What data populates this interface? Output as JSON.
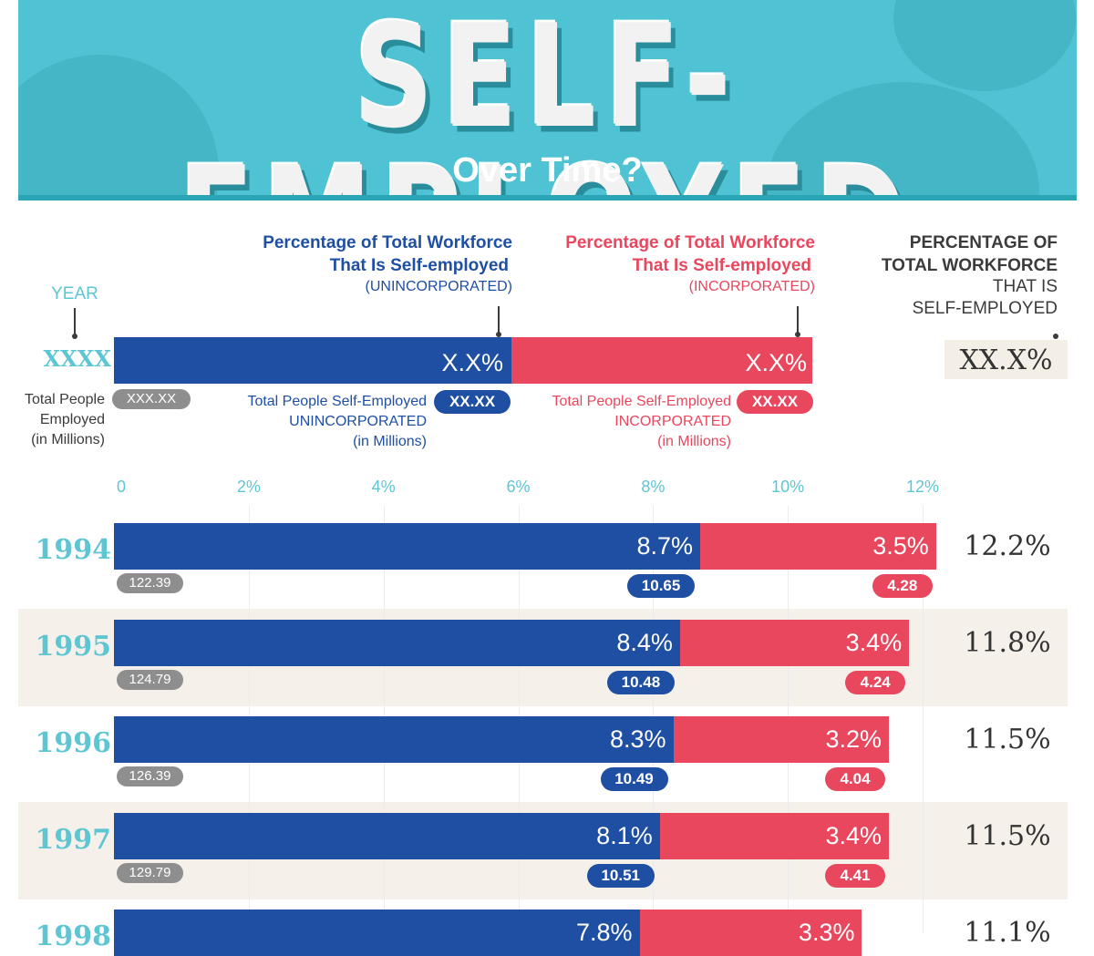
{
  "header": {
    "title": "SELF-EMPLOYED",
    "subtitle": "Over Time?"
  },
  "legend": {
    "year_label": "YEAR",
    "year_placeholder": "XXXX",
    "unincorporated_title_1": "Percentage of Total Workforce",
    "unincorporated_title_2": "That Is Self-employed",
    "unincorporated_sub": "(UNINCORPORATED)",
    "incorporated_title_1": "Percentage of Total Workforce",
    "incorporated_title_2": "That Is Self-employed",
    "incorporated_sub": "(INCORPORATED)",
    "total_title_1": "PERCENTAGE OF",
    "total_title_2": "TOTAL WORKFORCE",
    "total_sub_1": "THAT IS",
    "total_sub_2": "SELF-EMPLOYED",
    "sample_unincorp_pct": "X.X%",
    "sample_incorp_pct": "X.X%",
    "sample_total_pct": "XX.X%",
    "employed_label_1": "Total People",
    "employed_label_2": "Employed",
    "employed_label_3": "(in Millions)",
    "employed_sample": "XXX.XX",
    "unincorp_people_1": "Total People Self-Employed",
    "unincorp_people_2": "UNINCORPORATED",
    "unincorp_people_3": "(in Millions)",
    "unincorp_sample": "XX.XX",
    "incorp_people_1": "Total People Self-Employed",
    "incorp_people_2": "INCORPORATED",
    "incorp_people_3": "(in Millions)",
    "incorp_sample": "XX.XX"
  },
  "colors": {
    "unincorporated": "#1f4fa3",
    "incorporated": "#e8475e",
    "accent": "#5ec6d3"
  },
  "chart_data": {
    "type": "bar",
    "orientation": "horizontal",
    "stacked": true,
    "x_ticks": [
      "0",
      "2%",
      "4%",
      "6%",
      "8%",
      "10%",
      "12%"
    ],
    "xlim": [
      0,
      12
    ],
    "categories": [
      "1994",
      "1995",
      "1996",
      "1997",
      "1998"
    ],
    "series": [
      {
        "name": "Self-employed (unincorporated) %",
        "values": [
          8.7,
          8.4,
          8.3,
          8.1,
          7.8
        ]
      },
      {
        "name": "Self-employed (incorporated) %",
        "values": [
          3.5,
          3.4,
          3.2,
          3.4,
          3.3
        ]
      }
    ],
    "rows": [
      {
        "year": "1994",
        "unincorp_pct": 8.7,
        "incorp_pct": 3.5,
        "unincorp_label": "8.7%",
        "incorp_label": "3.5%",
        "total": "12.2%",
        "employed": "122.39",
        "unincorp_people": "10.65",
        "incorp_people": "4.28"
      },
      {
        "year": "1995",
        "unincorp_pct": 8.4,
        "incorp_pct": 3.4,
        "unincorp_label": "8.4%",
        "incorp_label": "3.4%",
        "total": "11.8%",
        "employed": "124.79",
        "unincorp_people": "10.48",
        "incorp_people": "4.24"
      },
      {
        "year": "1996",
        "unincorp_pct": 8.3,
        "incorp_pct": 3.2,
        "unincorp_label": "8.3%",
        "incorp_label": "3.2%",
        "total": "11.5%",
        "employed": "126.39",
        "unincorp_people": "10.49",
        "incorp_people": "4.04"
      },
      {
        "year": "1997",
        "unincorp_pct": 8.1,
        "incorp_pct": 3.4,
        "unincorp_label": "8.1%",
        "incorp_label": "3.4%",
        "total": "11.5%",
        "employed": "129.79",
        "unincorp_people": "10.51",
        "incorp_people": "4.41"
      },
      {
        "year": "1998",
        "unincorp_pct": 7.8,
        "incorp_pct": 3.3,
        "unincorp_label": "7.8%",
        "incorp_label": "3.3%",
        "total": "11.1%",
        "employed": "",
        "unincorp_people": "",
        "incorp_people": ""
      }
    ]
  }
}
